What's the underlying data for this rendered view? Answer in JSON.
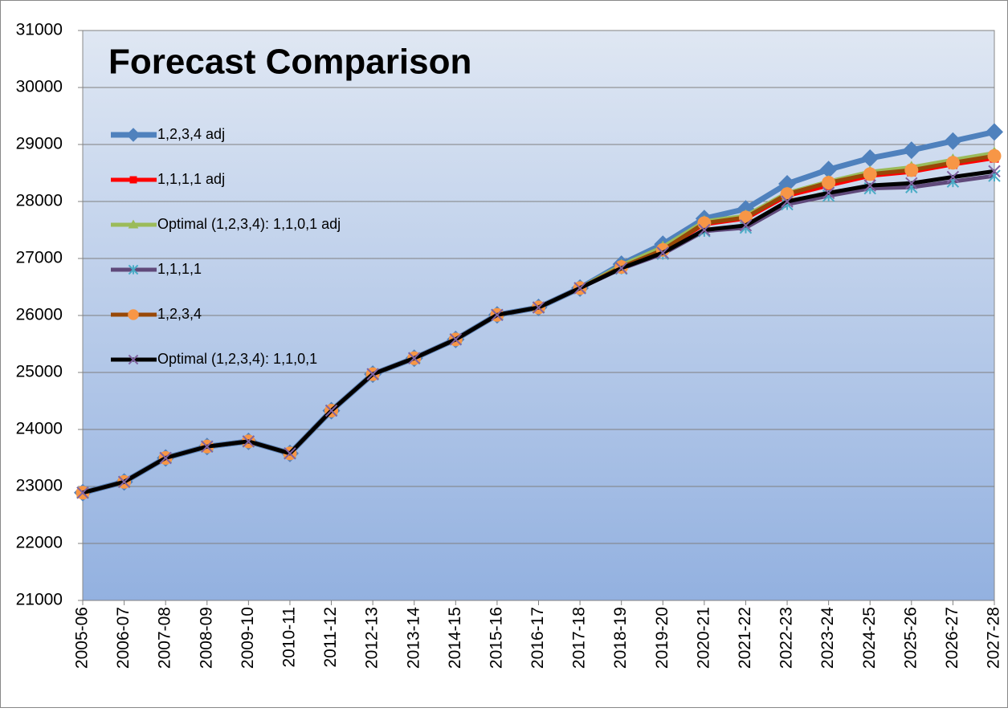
{
  "chart_data": {
    "type": "line",
    "title": "Forecast Comparison",
    "categories": [
      "2005-06",
      "2006-07",
      "2007-08",
      "2008-09",
      "2009-10",
      "2010-11",
      "2011-12",
      "2012-13",
      "2013-14",
      "2014-15",
      "2015-16",
      "2016-17",
      "2017-18",
      "2018-19",
      "2019-20",
      "2020-21",
      "2021-22",
      "2022-23",
      "2023-24",
      "2024-25",
      "2025-26",
      "2026-27",
      "2027-28"
    ],
    "ylim": [
      21000,
      31000
    ],
    "yticks": [
      21000,
      22000,
      23000,
      24000,
      25000,
      26000,
      27000,
      28000,
      29000,
      30000,
      31000
    ],
    "grid": true,
    "legend": "left",
    "series": [
      {
        "name": "1,2,3,4 adj",
        "color": "#4f81bd",
        "marker": "diamond",
        "values": [
          22890,
          23080,
          23500,
          23700,
          23790,
          23580,
          24330,
          24970,
          25250,
          25580,
          26010,
          26140,
          26480,
          26900,
          27250,
          27700,
          27870,
          28310,
          28560,
          28760,
          28900,
          29060,
          29220
        ]
      },
      {
        "name": "1,1,1,1 adj",
        "color": "#ff0000",
        "marker": "square",
        "values": [
          22890,
          23080,
          23500,
          23700,
          23790,
          23580,
          24330,
          24970,
          25250,
          25580,
          26010,
          26140,
          26480,
          26850,
          27150,
          27600,
          27700,
          28100,
          28280,
          28450,
          28520,
          28650,
          28760
        ]
      },
      {
        "name": "Optimal (1,2,3,4): 1,1,0,1 adj",
        "color": "#9bbb59",
        "marker": "triangle",
        "values": [
          22890,
          23080,
          23500,
          23700,
          23790,
          23580,
          24330,
          24970,
          25250,
          25580,
          26010,
          26140,
          26480,
          26880,
          27200,
          27650,
          27750,
          28150,
          28350,
          28520,
          28600,
          28730,
          28850
        ]
      },
      {
        "name": "1,1,1,1",
        "color": "#604a7b",
        "marker": "asterisk",
        "values": [
          22890,
          23080,
          23500,
          23700,
          23790,
          23580,
          24330,
          24970,
          25250,
          25580,
          26010,
          26140,
          26480,
          26820,
          27080,
          27480,
          27540,
          27950,
          28100,
          28230,
          28250,
          28350,
          28450
        ]
      },
      {
        "name": "1,2,3,4",
        "color": "#984807",
        "marker": "circle",
        "values": [
          22890,
          23080,
          23500,
          23700,
          23790,
          23580,
          24330,
          24970,
          25250,
          25580,
          26010,
          26140,
          26480,
          26850,
          27150,
          27620,
          27720,
          28130,
          28330,
          28480,
          28550,
          28680,
          28800
        ]
      },
      {
        "name": "Optimal (1,2,3,4): 1,1,0,1",
        "color": "#000000",
        "marker": "x",
        "values": [
          22890,
          23080,
          23500,
          23700,
          23790,
          23580,
          24330,
          24970,
          25250,
          25580,
          26010,
          26140,
          26480,
          26830,
          27100,
          27500,
          27580,
          28000,
          28150,
          28280,
          28320,
          28430,
          28530
        ]
      }
    ]
  }
}
